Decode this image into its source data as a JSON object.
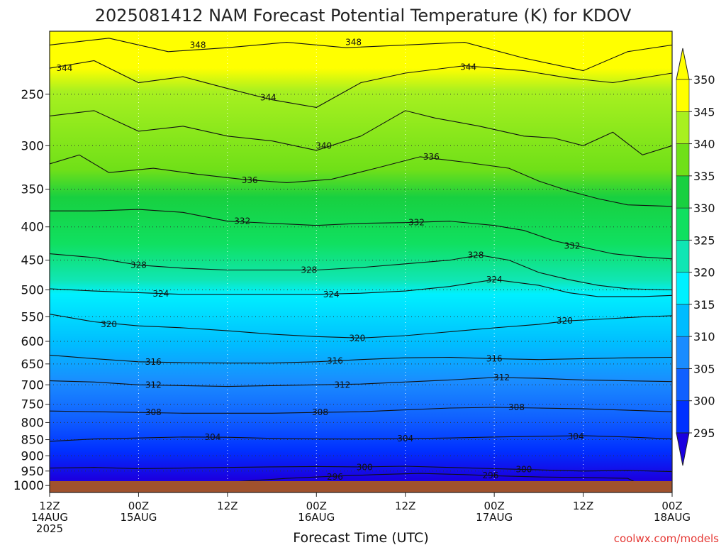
{
  "chart_data": {
    "type": "contour",
    "title": "2025081412 NAM Forecast Potential Temperature (K) for KDOV",
    "xlabel": "Forecast Time (UTC)",
    "ylabel": "",
    "credit": "coolwx.com/models",
    "x_ticks": [
      {
        "l1": "12Z",
        "l2": "14AUG",
        "l3": "2025"
      },
      {
        "l1": "00Z",
        "l2": "15AUG",
        "l3": ""
      },
      {
        "l1": "12Z",
        "l2": "",
        "l3": ""
      },
      {
        "l1": "00Z",
        "l2": "16AUG",
        "l3": ""
      },
      {
        "l1": "12Z",
        "l2": "",
        "l3": ""
      },
      {
        "l1": "00Z",
        "l2": "17AUG",
        "l3": ""
      },
      {
        "l1": "12Z",
        "l2": "",
        "l3": ""
      },
      {
        "l1": "00Z",
        "l2": "18AUG",
        "l3": ""
      }
    ],
    "x_hours": [
      0,
      12,
      24,
      36,
      48,
      60,
      72,
      84
    ],
    "xlim_hours": [
      0,
      84
    ],
    "y_ticks": [
      250,
      300,
      350,
      400,
      450,
      500,
      550,
      600,
      650,
      700,
      750,
      800,
      850,
      900,
      950,
      1000
    ],
    "ylim_hpa": [
      1025,
      200
    ],
    "grid": true,
    "colorbar": {
      "labels": [
        295,
        300,
        305,
        310,
        315,
        320,
        325,
        330,
        335,
        340,
        345,
        350
      ],
      "colors": [
        "#1a00e0",
        "#0030ff",
        "#1060ff",
        "#1a8cff",
        "#00bcff",
        "#00f0ff",
        "#10e6b4",
        "#10e060",
        "#18d040",
        "#70e018",
        "#a8f020",
        "#ffff00"
      ]
    },
    "contour_labels": [
      {
        "value": "348",
        "hour": 20,
        "p": 210
      },
      {
        "value": "348",
        "hour": 41,
        "p": 208
      },
      {
        "value": "344",
        "hour": 2,
        "p": 228
      },
      {
        "value": "344",
        "hour": 29.5,
        "p": 253
      },
      {
        "value": "344",
        "hour": 56.5,
        "p": 227
      },
      {
        "value": "340",
        "hour": 37,
        "p": 300
      },
      {
        "value": "336",
        "hour": 27,
        "p": 339
      },
      {
        "value": "336",
        "hour": 51.5,
        "p": 312
      },
      {
        "value": "332",
        "hour": 26,
        "p": 392
      },
      {
        "value": "332",
        "hour": 49.5,
        "p": 394
      },
      {
        "value": "332",
        "hour": 70.5,
        "p": 428
      },
      {
        "value": "328",
        "hour": 12,
        "p": 458
      },
      {
        "value": "328",
        "hour": 35,
        "p": 466
      },
      {
        "value": "328",
        "hour": 57.5,
        "p": 442
      },
      {
        "value": "324",
        "hour": 15,
        "p": 507
      },
      {
        "value": "324",
        "hour": 38,
        "p": 508
      },
      {
        "value": "324",
        "hour": 60,
        "p": 482
      },
      {
        "value": "320",
        "hour": 8,
        "p": 565
      },
      {
        "value": "320",
        "hour": 41.5,
        "p": 593
      },
      {
        "value": "320",
        "hour": 69.5,
        "p": 558
      },
      {
        "value": "316",
        "hour": 14,
        "p": 645
      },
      {
        "value": "316",
        "hour": 38.5,
        "p": 643
      },
      {
        "value": "316",
        "hour": 60,
        "p": 638
      },
      {
        "value": "312",
        "hour": 14,
        "p": 700
      },
      {
        "value": "312",
        "hour": 39.5,
        "p": 700
      },
      {
        "value": "312",
        "hour": 61,
        "p": 682
      },
      {
        "value": "308",
        "hour": 14,
        "p": 772
      },
      {
        "value": "308",
        "hour": 36.5,
        "p": 772
      },
      {
        "value": "308",
        "hour": 63,
        "p": 758
      },
      {
        "value": "304",
        "hour": 22,
        "p": 842
      },
      {
        "value": "304",
        "hour": 48,
        "p": 847
      },
      {
        "value": "304",
        "hour": 71,
        "p": 840
      },
      {
        "value": "300",
        "hour": 42.5,
        "p": 938
      },
      {
        "value": "300",
        "hour": 64,
        "p": 945
      },
      {
        "value": "296",
        "hour": 38.5,
        "p": 970
      },
      {
        "value": "296",
        "hour": 59.5,
        "p": 965
      }
    ],
    "isentropes": [
      {
        "value": 348,
        "points": [
          [
            0,
            210
          ],
          [
            8,
            205
          ],
          [
            16,
            215
          ],
          [
            24,
            212
          ],
          [
            32,
            208
          ],
          [
            40,
            212
          ],
          [
            48,
            210
          ],
          [
            56,
            208
          ],
          [
            64,
            220
          ],
          [
            72,
            230
          ],
          [
            78,
            215
          ],
          [
            84,
            210
          ]
        ]
      },
      {
        "value": 344,
        "points": [
          [
            0,
            228
          ],
          [
            6,
            222
          ],
          [
            12,
            240
          ],
          [
            18,
            235
          ],
          [
            24,
            245
          ],
          [
            30,
            255
          ],
          [
            36,
            262
          ],
          [
            42,
            240
          ],
          [
            48,
            232
          ],
          [
            56,
            226
          ],
          [
            64,
            230
          ],
          [
            70,
            236
          ],
          [
            76,
            240
          ],
          [
            84,
            232
          ]
        ]
      },
      {
        "value": 340,
        "points": [
          [
            0,
            270
          ],
          [
            6,
            265
          ],
          [
            12,
            285
          ],
          [
            18,
            280
          ],
          [
            24,
            290
          ],
          [
            30,
            295
          ],
          [
            36,
            305
          ],
          [
            42,
            290
          ],
          [
            48,
            265
          ],
          [
            52,
            272
          ],
          [
            58,
            280
          ],
          [
            64,
            290
          ],
          [
            68,
            292
          ],
          [
            72,
            300
          ],
          [
            76,
            286
          ],
          [
            80,
            310
          ],
          [
            84,
            300
          ]
        ]
      },
      {
        "value": 336,
        "points": [
          [
            0,
            320
          ],
          [
            4,
            310
          ],
          [
            8,
            330
          ],
          [
            14,
            325
          ],
          [
            20,
            332
          ],
          [
            26,
            338
          ],
          [
            32,
            342
          ],
          [
            38,
            338
          ],
          [
            44,
            325
          ],
          [
            50,
            312
          ],
          [
            56,
            318
          ],
          [
            62,
            325
          ],
          [
            66,
            340
          ],
          [
            70,
            352
          ],
          [
            74,
            362
          ],
          [
            78,
            370
          ],
          [
            84,
            372
          ]
        ]
      },
      {
        "value": 332,
        "points": [
          [
            0,
            378
          ],
          [
            6,
            378
          ],
          [
            12,
            376
          ],
          [
            18,
            380
          ],
          [
            24,
            392
          ],
          [
            30,
            395
          ],
          [
            36,
            398
          ],
          [
            42,
            395
          ],
          [
            48,
            394
          ],
          [
            54,
            392
          ],
          [
            60,
            398
          ],
          [
            64,
            405
          ],
          [
            68,
            420
          ],
          [
            72,
            430
          ],
          [
            76,
            440
          ],
          [
            80,
            445
          ],
          [
            84,
            448
          ]
        ]
      },
      {
        "value": 328,
        "points": [
          [
            0,
            440
          ],
          [
            6,
            446
          ],
          [
            12,
            458
          ],
          [
            18,
            463
          ],
          [
            24,
            466
          ],
          [
            30,
            466
          ],
          [
            36,
            466
          ],
          [
            42,
            462
          ],
          [
            48,
            456
          ],
          [
            54,
            450
          ],
          [
            58,
            442
          ],
          [
            62,
            450
          ],
          [
            66,
            470
          ],
          [
            70,
            482
          ],
          [
            74,
            492
          ],
          [
            78,
            498
          ],
          [
            84,
            500
          ]
        ]
      },
      {
        "value": 324,
        "points": [
          [
            0,
            498
          ],
          [
            6,
            502
          ],
          [
            12,
            505
          ],
          [
            18,
            508
          ],
          [
            24,
            508
          ],
          [
            30,
            508
          ],
          [
            36,
            508
          ],
          [
            42,
            506
          ],
          [
            48,
            502
          ],
          [
            54,
            494
          ],
          [
            60,
            482
          ],
          [
            66,
            492
          ],
          [
            70,
            505
          ],
          [
            74,
            512
          ],
          [
            80,
            512
          ],
          [
            84,
            510
          ]
        ]
      },
      {
        "value": 320,
        "points": [
          [
            0,
            545
          ],
          [
            6,
            560
          ],
          [
            12,
            568
          ],
          [
            18,
            572
          ],
          [
            24,
            578
          ],
          [
            30,
            585
          ],
          [
            36,
            590
          ],
          [
            42,
            593
          ],
          [
            48,
            588
          ],
          [
            54,
            580
          ],
          [
            60,
            572
          ],
          [
            66,
            565
          ],
          [
            70,
            558
          ],
          [
            74,
            555
          ],
          [
            80,
            550
          ],
          [
            84,
            548
          ]
        ]
      },
      {
        "value": 316,
        "points": [
          [
            0,
            630
          ],
          [
            6,
            638
          ],
          [
            12,
            645
          ],
          [
            18,
            647
          ],
          [
            24,
            648
          ],
          [
            30,
            648
          ],
          [
            36,
            645
          ],
          [
            42,
            640
          ],
          [
            48,
            636
          ],
          [
            54,
            635
          ],
          [
            60,
            638
          ],
          [
            66,
            640
          ],
          [
            72,
            638
          ],
          [
            78,
            636
          ],
          [
            84,
            635
          ]
        ]
      },
      {
        "value": 312,
        "points": [
          [
            0,
            690
          ],
          [
            6,
            693
          ],
          [
            12,
            700
          ],
          [
            18,
            702
          ],
          [
            24,
            704
          ],
          [
            30,
            702
          ],
          [
            36,
            700
          ],
          [
            42,
            698
          ],
          [
            48,
            693
          ],
          [
            54,
            688
          ],
          [
            60,
            682
          ],
          [
            66,
            684
          ],
          [
            72,
            688
          ],
          [
            78,
            690
          ],
          [
            84,
            692
          ]
        ]
      },
      {
        "value": 308,
        "points": [
          [
            0,
            768
          ],
          [
            6,
            770
          ],
          [
            12,
            772
          ],
          [
            18,
            774
          ],
          [
            24,
            774
          ],
          [
            30,
            774
          ],
          [
            36,
            772
          ],
          [
            42,
            770
          ],
          [
            48,
            765
          ],
          [
            54,
            760
          ],
          [
            60,
            758
          ],
          [
            66,
            760
          ],
          [
            72,
            762
          ],
          [
            78,
            766
          ],
          [
            84,
            770
          ]
        ]
      },
      {
        "value": 304,
        "points": [
          [
            0,
            855
          ],
          [
            6,
            848
          ],
          [
            12,
            845
          ],
          [
            18,
            842
          ],
          [
            24,
            843
          ],
          [
            30,
            846
          ],
          [
            36,
            848
          ],
          [
            42,
            848
          ],
          [
            48,
            847
          ],
          [
            54,
            845
          ],
          [
            60,
            842
          ],
          [
            66,
            840
          ],
          [
            72,
            838
          ],
          [
            78,
            842
          ],
          [
            84,
            848
          ]
        ]
      },
      {
        "value": 300,
        "points": [
          [
            0,
            940
          ],
          [
            6,
            938
          ],
          [
            12,
            942
          ],
          [
            18,
            940
          ],
          [
            24,
            938
          ],
          [
            30,
            936
          ],
          [
            36,
            935
          ],
          [
            42,
            936
          ],
          [
            48,
            934
          ],
          [
            54,
            938
          ],
          [
            60,
            942
          ],
          [
            66,
            946
          ],
          [
            72,
            950
          ],
          [
            78,
            948
          ],
          [
            84,
            952
          ]
        ]
      },
      {
        "value": 296,
        "points": [
          [
            20,
            995
          ],
          [
            26,
            985
          ],
          [
            32,
            975
          ],
          [
            38,
            968
          ],
          [
            44,
            962
          ],
          [
            50,
            958
          ],
          [
            56,
            962
          ],
          [
            60,
            966
          ],
          [
            66,
            970
          ],
          [
            72,
            972
          ],
          [
            78,
            975
          ],
          [
            80,
            1000
          ]
        ]
      }
    ]
  }
}
